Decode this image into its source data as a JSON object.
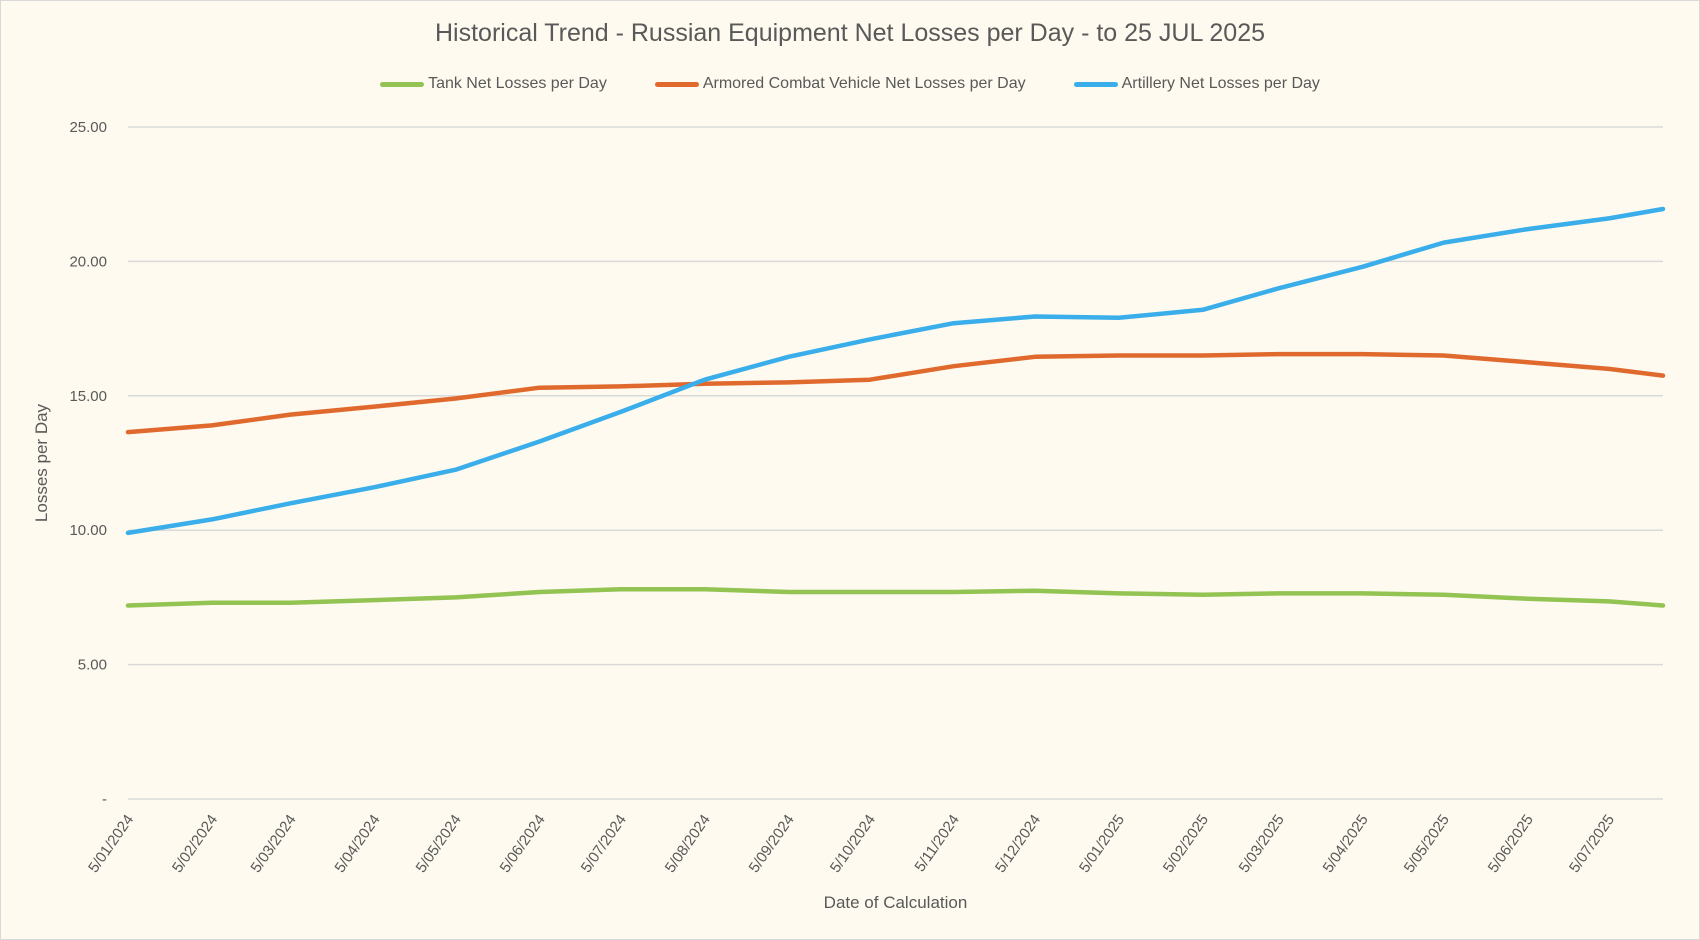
{
  "chart_data": {
    "type": "line",
    "title": "Historical Trend - Russian Equipment Net Losses per Day - to 25 JUL 2025",
    "xlabel": "Date of Calculation",
    "ylabel": "Losses per Day",
    "ylim": [
      0,
      25
    ],
    "y_ticks": [
      "-",
      "5.00",
      "10.00",
      "15.00",
      "20.00",
      "25.00"
    ],
    "x_ticks": [
      {
        "date": "2024-01-05",
        "label": "5/01/2024"
      },
      {
        "date": "2024-02-05",
        "label": "5/02/2024"
      },
      {
        "date": "2024-03-05",
        "label": "5/03/2024"
      },
      {
        "date": "2024-04-05",
        "label": "5/04/2024"
      },
      {
        "date": "2024-05-05",
        "label": "5/05/2024"
      },
      {
        "date": "2024-06-05",
        "label": "5/06/2024"
      },
      {
        "date": "2024-07-05",
        "label": "5/07/2024"
      },
      {
        "date": "2024-08-05",
        "label": "5/08/2024"
      },
      {
        "date": "2024-09-05",
        "label": "5/09/2024"
      },
      {
        "date": "2024-10-05",
        "label": "5/10/2024"
      },
      {
        "date": "2024-11-05",
        "label": "5/11/2024"
      },
      {
        "date": "2024-12-05",
        "label": "5/12/2024"
      },
      {
        "date": "2025-01-05",
        "label": "5/01/2025"
      },
      {
        "date": "2025-02-05",
        "label": "5/02/2025"
      },
      {
        "date": "2025-03-05",
        "label": "5/03/2025"
      },
      {
        "date": "2025-04-05",
        "label": "5/04/2025"
      },
      {
        "date": "2025-05-05",
        "label": "5/05/2025"
      },
      {
        "date": "2025-06-05",
        "label": "5/06/2025"
      },
      {
        "date": "2025-07-05",
        "label": "5/07/2025"
      }
    ],
    "x_range": [
      "2024-01-05",
      "2025-07-25"
    ],
    "x": [
      "2024-01-05",
      "2024-02-05",
      "2024-03-05",
      "2024-04-05",
      "2024-05-05",
      "2024-06-05",
      "2024-07-05",
      "2024-08-05",
      "2024-09-05",
      "2024-10-05",
      "2024-11-05",
      "2024-12-05",
      "2025-01-05",
      "2025-02-05",
      "2025-03-05",
      "2025-04-05",
      "2025-05-05",
      "2025-06-05",
      "2025-07-05",
      "2025-07-25"
    ],
    "grid": true,
    "legend": "top",
    "series": [
      {
        "name": "Tank Net Losses per Day",
        "color": "#92c353",
        "values": [
          7.2,
          7.3,
          7.3,
          7.4,
          7.5,
          7.7,
          7.8,
          7.8,
          7.7,
          7.7,
          7.7,
          7.75,
          7.65,
          7.6,
          7.65,
          7.65,
          7.6,
          7.45,
          7.35,
          7.2
        ]
      },
      {
        "name": "Armored Combat Vehicle Net Losses per Day",
        "color": "#e06a2e",
        "values": [
          13.65,
          13.9,
          14.3,
          14.6,
          14.9,
          15.3,
          15.35,
          15.45,
          15.5,
          15.6,
          16.1,
          16.45,
          16.5,
          16.5,
          16.55,
          16.55,
          16.5,
          16.25,
          16.0,
          15.75
        ]
      },
      {
        "name": "Artillery Net Losses per Day",
        "color": "#3aaeea",
        "values": [
          9.9,
          10.4,
          11.0,
          11.6,
          12.25,
          13.3,
          14.4,
          15.6,
          16.45,
          17.1,
          17.7,
          17.95,
          17.9,
          18.2,
          19.0,
          19.8,
          20.7,
          21.2,
          21.6,
          21.95
        ]
      }
    ]
  }
}
